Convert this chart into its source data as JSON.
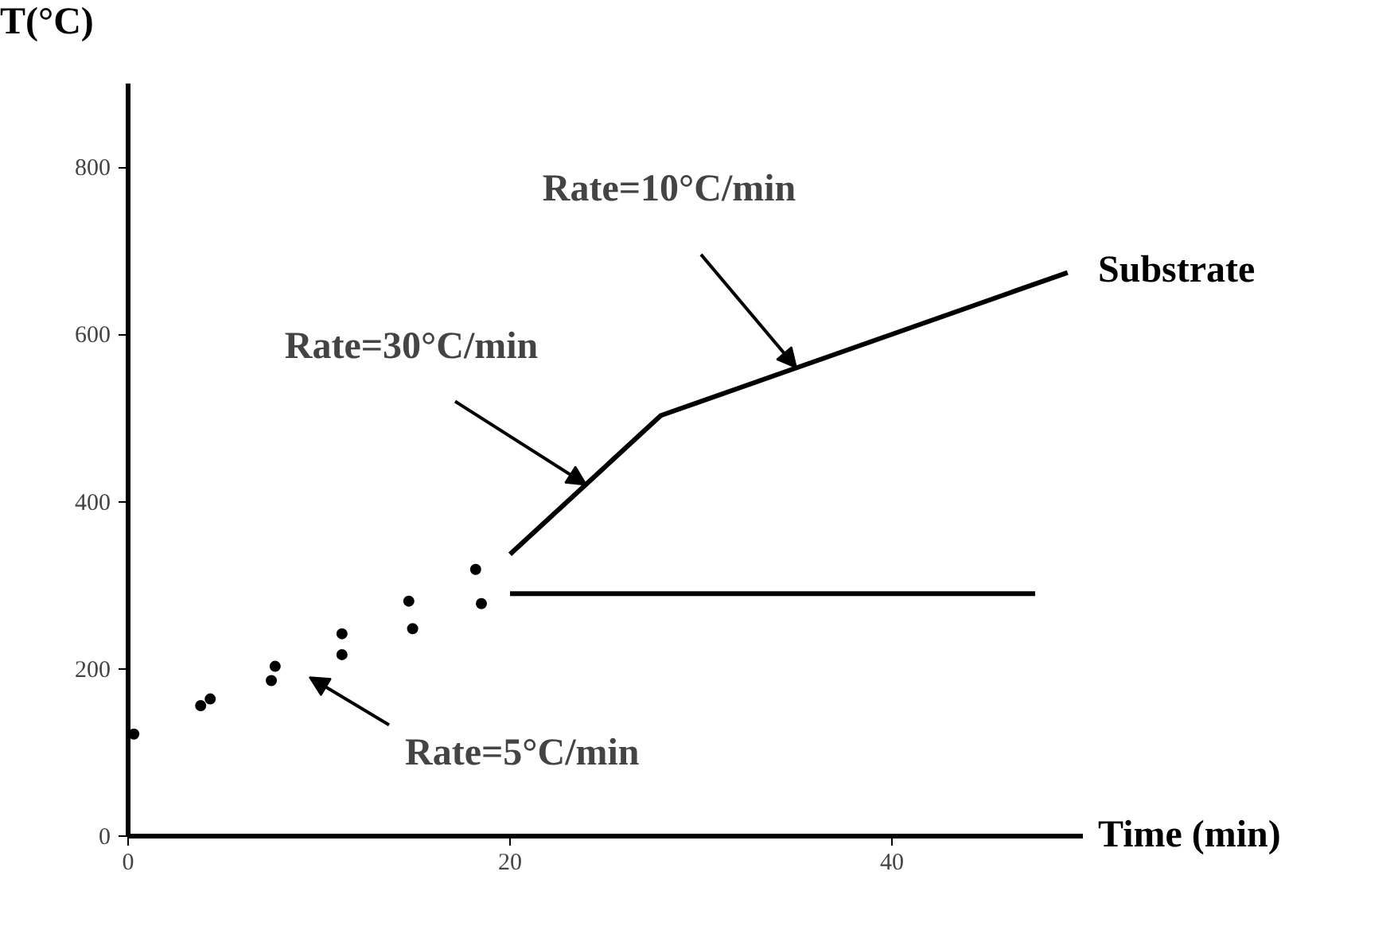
{
  "chart_data": {
    "type": "line",
    "xlabel": "Time (min)",
    "ylabel": "T(°C)",
    "xlim": [
      0,
      50
    ],
    "ylim": [
      0,
      900
    ],
    "xticks": [
      0,
      20,
      40
    ],
    "yticks": [
      0,
      200,
      400,
      600,
      800
    ],
    "grid": false,
    "line_style": "solid",
    "series": [
      {
        "name": "Substrate",
        "color": "#000000",
        "x": [
          20,
          27.9,
          49.2
        ],
        "values": [
          337,
          503,
          674
        ]
      },
      {
        "color": "#000000",
        "x": [
          20,
          47.5
        ],
        "values": [
          290,
          290
        ]
      },
      {
        "type": "scatter",
        "marker": "circle",
        "color": "#000000",
        "x": [
          0.3,
          3.8,
          4.3,
          7.5,
          7.7,
          11.2,
          11.2,
          14.9,
          14.7,
          18.5,
          18.2
        ],
        "values": [
          122,
          156,
          164,
          186,
          203,
          217,
          242,
          248,
          281,
          278,
          319
        ]
      }
    ],
    "annotations": [
      {
        "text": "Rate=30°C/min",
        "x": 24,
        "y": 420
      },
      {
        "text": "Rate=10°C/min",
        "x": 35,
        "y": 560
      },
      "Rate=5°C/min"
    ]
  }
}
